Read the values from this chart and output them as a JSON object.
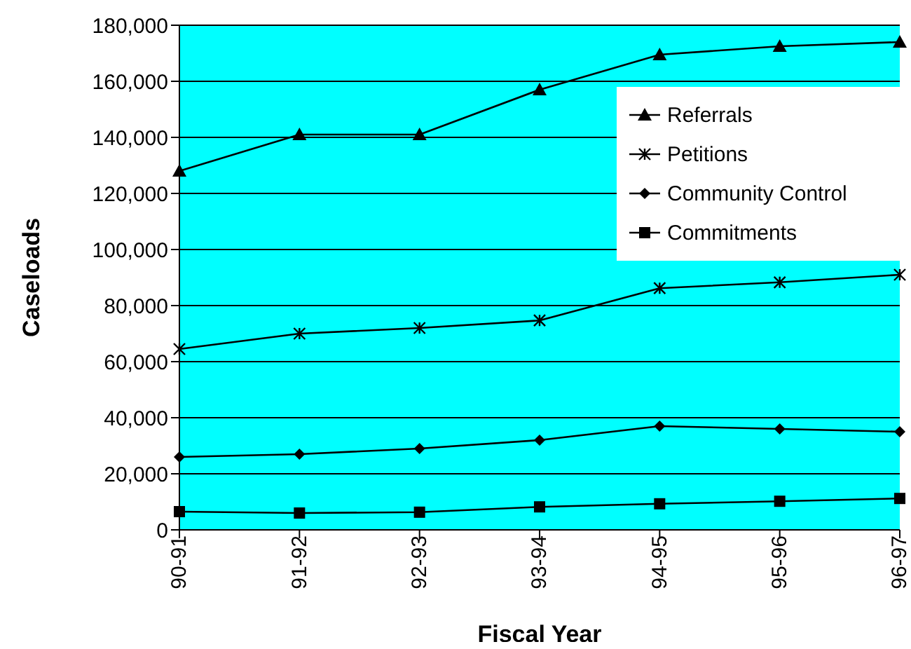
{
  "chart_data": {
    "type": "line",
    "xlabel": "Fiscal Year",
    "ylabel": "Caseloads",
    "categories": [
      "90-91",
      "91-92",
      "92-93",
      "93-94",
      "94-95",
      "95-96",
      "96-97"
    ],
    "series": [
      {
        "name": "Referrals",
        "color": "#000000",
        "marker": "triangle",
        "values": [
          128000,
          141000,
          141000,
          157000,
          169500,
          172500,
          174000
        ]
      },
      {
        "name": "Petitions",
        "color": "#000000",
        "marker": "cross",
        "values": [
          64500,
          70000,
          72000,
          74700,
          86200,
          88300,
          91000
        ]
      },
      {
        "name": "Community Control",
        "color": "#000000",
        "marker": "diamond",
        "values": [
          26000,
          27000,
          29000,
          32000,
          37000,
          36000,
          35000
        ]
      },
      {
        "name": "Commitments",
        "color": "#000000",
        "marker": "square",
        "values": [
          6500,
          6000,
          6300,
          8200,
          9300,
          10200,
          11200
        ]
      }
    ],
    "ylim": [
      0,
      180000
    ],
    "yticks": [
      0,
      {
        "value": 20000,
        "label": "20,000"
      },
      {
        "value": 40000,
        "label": "40,000"
      },
      {
        "value": 60000,
        "label": "60,000"
      },
      {
        "value": 80000,
        "label": "80,000"
      },
      {
        "value": 100000,
        "label": "100,000"
      },
      {
        "value": 120000,
        "label": "120,000"
      },
      {
        "value": 140000,
        "label": "140,000"
      },
      {
        "value": 160000,
        "label": "160,000"
      },
      {
        "value": 180000,
        "label": "180,000"
      }
    ],
    "grid": "y",
    "legend": "top right"
  }
}
